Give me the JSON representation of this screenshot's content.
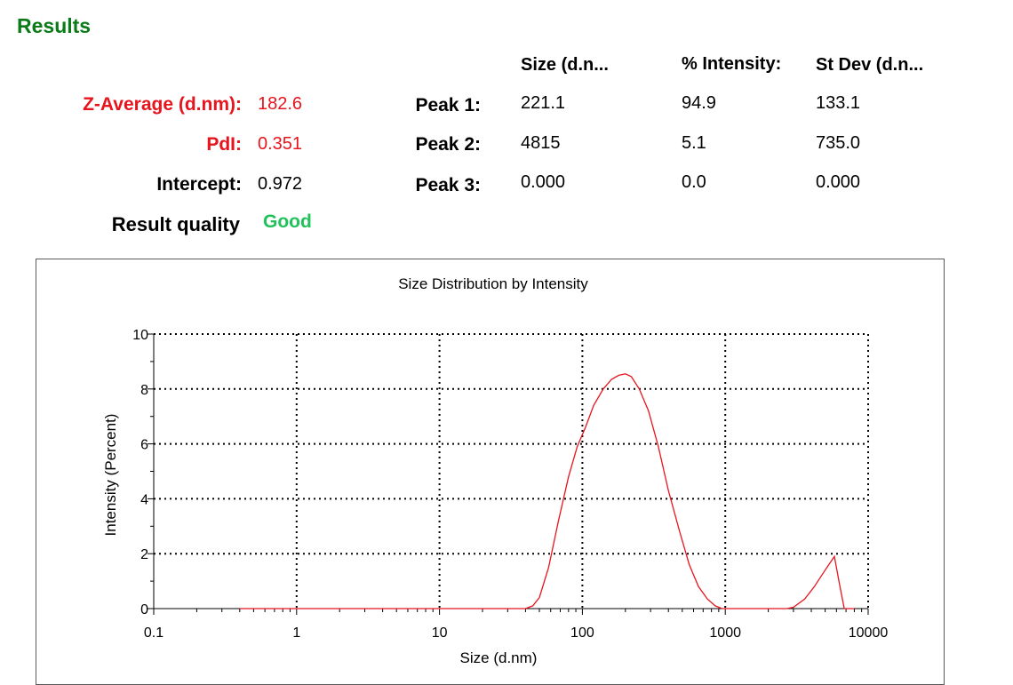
{
  "results_title": "Results",
  "summary": {
    "z_average": {
      "label": "Z-Average (d.nm):",
      "value": "182.6"
    },
    "pdi": {
      "label": "PdI:",
      "value": "0.351"
    },
    "intercept": {
      "label": "Intercept:",
      "value": "0.972"
    },
    "result_quality": {
      "label": "Result quality",
      "value": "Good"
    }
  },
  "peaks_table": {
    "headers": [
      "Size (d.n...",
      "% Intensity:",
      "St Dev (d.n..."
    ],
    "rows": [
      {
        "label": "Peak 1:",
        "size": "221.1",
        "intensity": "94.9",
        "stdev": "133.1"
      },
      {
        "label": "Peak 2:",
        "size": "4815",
        "intensity": "5.1",
        "stdev": "735.0"
      },
      {
        "label": "Peak 3:",
        "size": "0.000",
        "intensity": "0.0",
        "stdev": "0.000"
      }
    ]
  },
  "colors": {
    "title_green": "#0b7a18",
    "highlight_red": "#e8141d",
    "good_green": "#22c25a",
    "curve_red": "#e8141d"
  },
  "chart_data": {
    "type": "line",
    "title": "Size Distribution by Intensity",
    "xlabel": "Size (d.nm)",
    "ylabel": "Intensity (Percent)",
    "x_scale": "log",
    "xlim": [
      0.1,
      10000
    ],
    "ylim": [
      0,
      10
    ],
    "x_ticks": [
      "0.1",
      "1",
      "10",
      "100",
      "1000",
      "10000"
    ],
    "y_ticks": [
      "0",
      "2",
      "4",
      "6",
      "8",
      "10"
    ],
    "grid": "dotted",
    "series": [
      {
        "points": [
          [
            0.4,
            0
          ],
          [
            40,
            0
          ],
          [
            45,
            0.1
          ],
          [
            50,
            0.4
          ],
          [
            58,
            1.5
          ],
          [
            68,
            3.2
          ],
          [
            80,
            4.8
          ],
          [
            92,
            5.9
          ],
          [
            105,
            6.6
          ],
          [
            120,
            7.4
          ],
          [
            140,
            8.0
          ],
          [
            160,
            8.35
          ],
          [
            180,
            8.5
          ],
          [
            200,
            8.55
          ],
          [
            220,
            8.45
          ],
          [
            250,
            8.0
          ],
          [
            290,
            7.2
          ],
          [
            340,
            5.9
          ],
          [
            400,
            4.3
          ],
          [
            480,
            2.8
          ],
          [
            560,
            1.6
          ],
          [
            650,
            0.8
          ],
          [
            750,
            0.35
          ],
          [
            850,
            0.1
          ],
          [
            950,
            0
          ],
          [
            2700,
            0
          ],
          [
            3000,
            0.05
          ],
          [
            3600,
            0.35
          ],
          [
            4200,
            0.8
          ],
          [
            5000,
            1.4
          ],
          [
            5800,
            1.9
          ],
          [
            6300,
            0.9
          ],
          [
            6800,
            0
          ],
          [
            8000,
            0
          ]
        ]
      }
    ]
  }
}
